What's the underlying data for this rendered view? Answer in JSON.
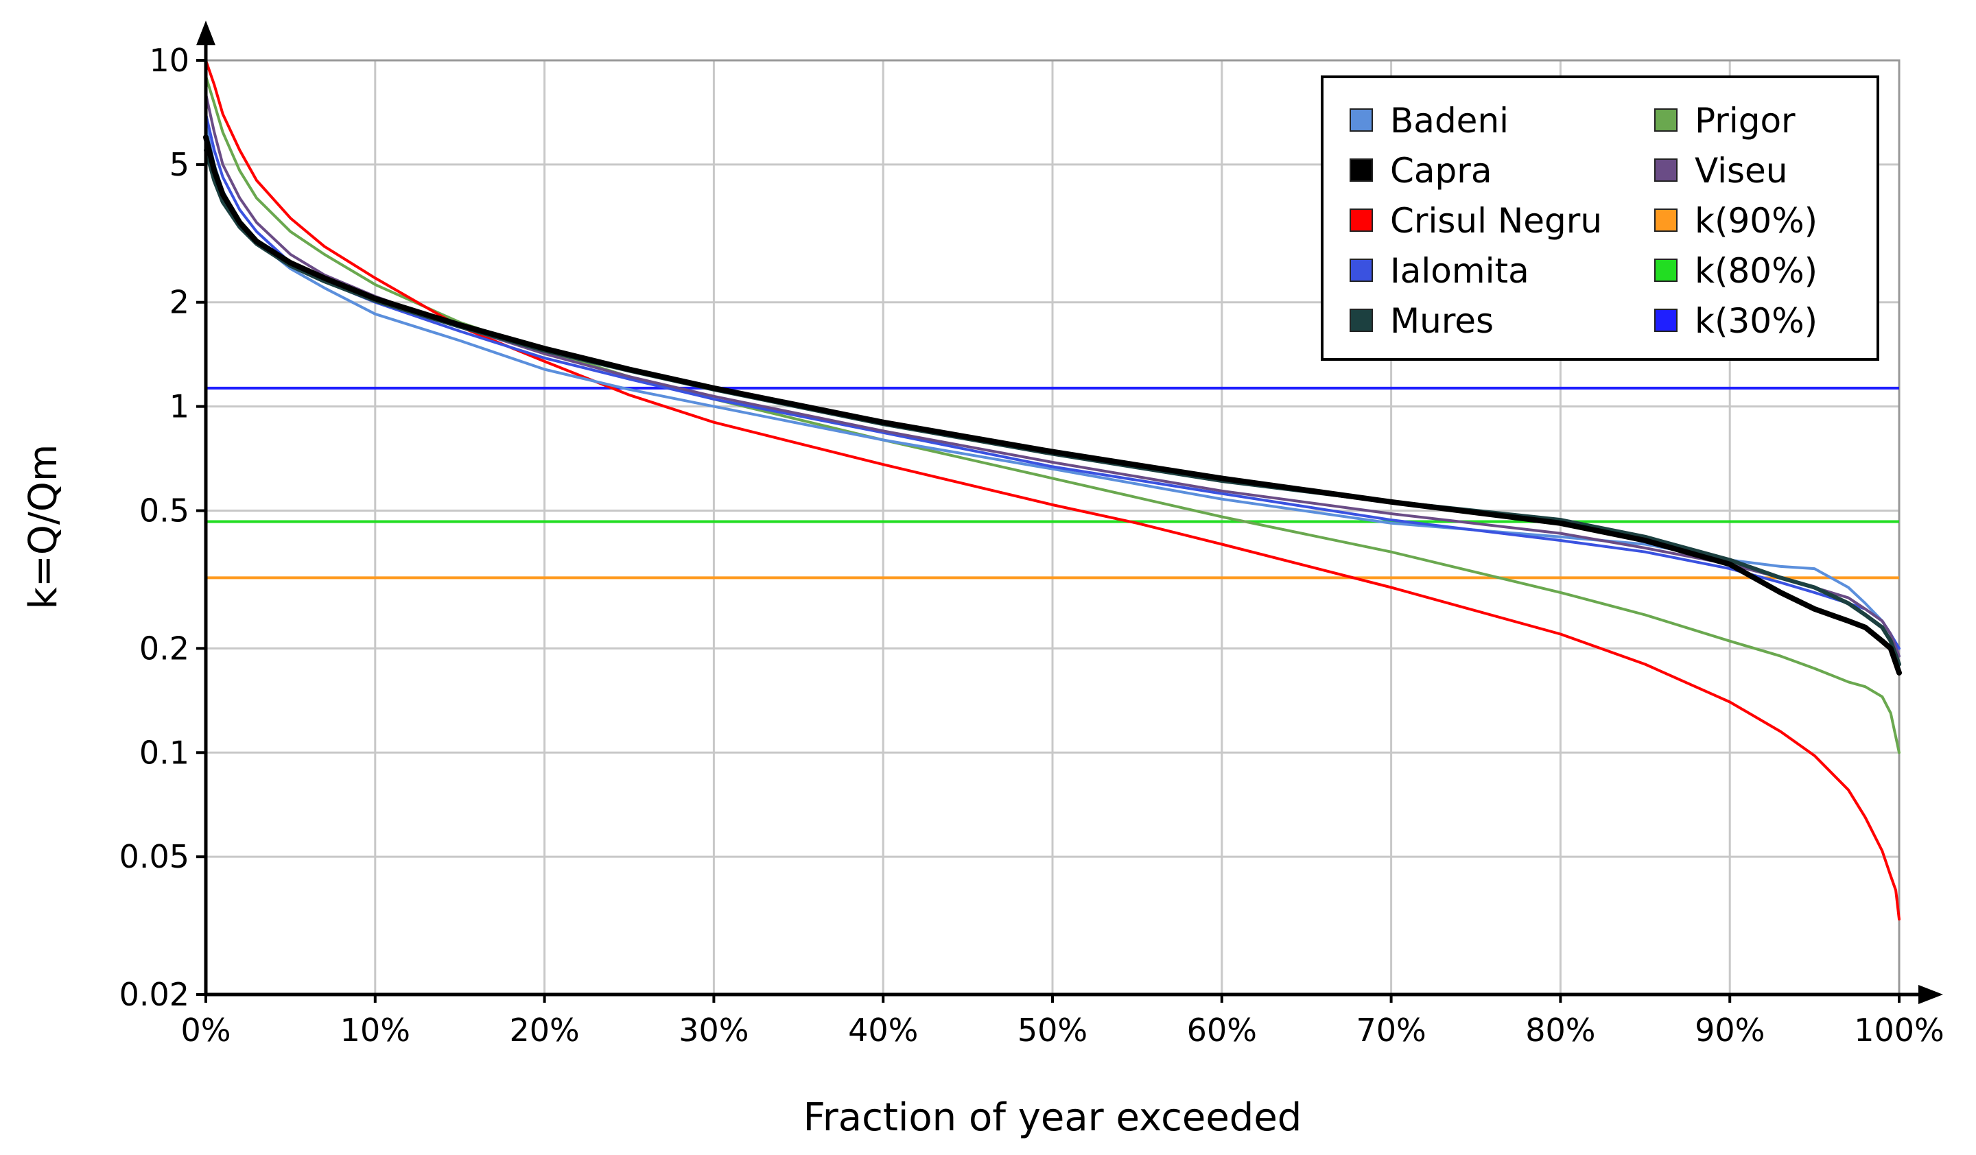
{
  "chart_data": {
    "type": "line",
    "title": "",
    "xlabel": "Fraction of year exceeded",
    "ylabel": "k=Q/Qm",
    "xlim": [
      0,
      100
    ],
    "ylim": [
      0.02,
      10
    ],
    "yscale": "log",
    "grid": true,
    "legend_position": "top-right",
    "x_ticks": [
      {
        "value": 0,
        "label": "0%"
      },
      {
        "value": 10,
        "label": "10%"
      },
      {
        "value": 20,
        "label": "20%"
      },
      {
        "value": 30,
        "label": "30%"
      },
      {
        "value": 40,
        "label": "40%"
      },
      {
        "value": 50,
        "label": "50%"
      },
      {
        "value": 60,
        "label": "60%"
      },
      {
        "value": 70,
        "label": "70%"
      },
      {
        "value": 80,
        "label": "80%"
      },
      {
        "value": 90,
        "label": "90%"
      },
      {
        "value": 100,
        "label": "100%"
      }
    ],
    "y_ticks": [
      {
        "value": 10,
        "label": "10"
      },
      {
        "value": 5,
        "label": "5"
      },
      {
        "value": 2,
        "label": "2"
      },
      {
        "value": 1,
        "label": "1"
      },
      {
        "value": 0.5,
        "label": "0.5"
      },
      {
        "value": 0.2,
        "label": "0.2"
      },
      {
        "value": 0.1,
        "label": "0.1"
      },
      {
        "value": 0.05,
        "label": "0.05"
      },
      {
        "value": 0.02,
        "label": "0.02"
      }
    ],
    "series": [
      {
        "name": "Badeni",
        "color": "#5b8fdc",
        "x": [
          0,
          0.5,
          1,
          2,
          3,
          5,
          7,
          10,
          15,
          20,
          25,
          30,
          40,
          50,
          60,
          70,
          80,
          85,
          90,
          93,
          95,
          97,
          98,
          99,
          99.5,
          100
        ],
        "y": [
          6.5,
          5.0,
          4.2,
          3.4,
          3.0,
          2.5,
          2.2,
          1.85,
          1.55,
          1.28,
          1.12,
          1.0,
          0.8,
          0.66,
          0.54,
          0.46,
          0.42,
          0.4,
          0.36,
          0.345,
          0.34,
          0.3,
          0.27,
          0.24,
          0.22,
          0.19
        ]
      },
      {
        "name": "Capra",
        "color": "#000000",
        "x": [
          0,
          0.5,
          1,
          2,
          3,
          5,
          7,
          10,
          15,
          20,
          25,
          30,
          40,
          50,
          60,
          70,
          80,
          85,
          90,
          93,
          95,
          97,
          98,
          99,
          99.5,
          100
        ],
        "y": [
          6.0,
          4.8,
          4.1,
          3.4,
          3.0,
          2.6,
          2.35,
          2.05,
          1.72,
          1.47,
          1.28,
          1.13,
          0.9,
          0.74,
          0.62,
          0.53,
          0.46,
          0.41,
          0.35,
          0.29,
          0.26,
          0.24,
          0.23,
          0.21,
          0.2,
          0.17
        ]
      },
      {
        "name": "Crisul Negru",
        "color": "#ff0000",
        "x": [
          0,
          0.5,
          1,
          2,
          3,
          5,
          7,
          10,
          15,
          20,
          25,
          30,
          40,
          50,
          55,
          60,
          70,
          80,
          85,
          90,
          93,
          95,
          97,
          98,
          99,
          99.5,
          99.8,
          100
        ],
        "y": [
          10.0,
          8.5,
          7.0,
          5.5,
          4.5,
          3.5,
          2.9,
          2.35,
          1.7,
          1.35,
          1.08,
          0.9,
          0.68,
          0.52,
          0.46,
          0.4,
          0.3,
          0.22,
          0.18,
          0.14,
          0.115,
          0.098,
          0.078,
          0.065,
          0.052,
          0.044,
          0.04,
          0.033
        ]
      },
      {
        "name": "Ialomita",
        "color": "#3a52e0",
        "x": [
          0,
          0.5,
          1,
          2,
          3,
          5,
          7,
          10,
          15,
          20,
          25,
          30,
          40,
          50,
          60,
          70,
          80,
          85,
          90,
          93,
          95,
          97,
          98,
          99,
          99.5,
          100
        ],
        "y": [
          7.0,
          5.5,
          4.6,
          3.7,
          3.2,
          2.6,
          2.3,
          2.0,
          1.65,
          1.38,
          1.2,
          1.05,
          0.84,
          0.67,
          0.56,
          0.47,
          0.41,
          0.38,
          0.34,
          0.31,
          0.29,
          0.27,
          0.26,
          0.24,
          0.22,
          0.2
        ]
      },
      {
        "name": "Mures",
        "color": "#1c4040",
        "x": [
          0,
          0.5,
          1,
          2,
          3,
          5,
          7,
          10,
          15,
          20,
          25,
          30,
          40,
          50,
          60,
          70,
          80,
          85,
          90,
          93,
          95,
          97,
          98,
          99,
          99.5,
          100
        ],
        "y": [
          5.5,
          4.5,
          3.9,
          3.3,
          2.95,
          2.55,
          2.3,
          2.02,
          1.7,
          1.45,
          1.27,
          1.12,
          0.89,
          0.73,
          0.61,
          0.53,
          0.47,
          0.42,
          0.36,
          0.32,
          0.3,
          0.27,
          0.25,
          0.23,
          0.21,
          0.18
        ]
      },
      {
        "name": "Prigor",
        "color": "#6aa84f",
        "x": [
          0,
          0.5,
          1,
          2,
          3,
          5,
          7,
          10,
          15,
          20,
          25,
          30,
          40,
          50,
          60,
          70,
          80,
          85,
          90,
          93,
          95,
          97,
          98,
          99,
          99.5,
          100
        ],
        "y": [
          9.0,
          7.5,
          6.2,
          4.8,
          4.0,
          3.2,
          2.75,
          2.25,
          1.75,
          1.45,
          1.22,
          1.05,
          0.8,
          0.62,
          0.48,
          0.38,
          0.29,
          0.25,
          0.21,
          0.19,
          0.175,
          0.16,
          0.155,
          0.145,
          0.13,
          0.1
        ]
      },
      {
        "name": "Viseu",
        "color": "#6a4c86",
        "x": [
          0,
          0.5,
          1,
          2,
          3,
          5,
          7,
          10,
          15,
          20,
          25,
          30,
          40,
          50,
          60,
          70,
          80,
          85,
          90,
          93,
          95,
          97,
          98,
          99,
          99.5,
          100
        ],
        "y": [
          8.0,
          6.2,
          5.0,
          4.0,
          3.4,
          2.75,
          2.4,
          2.08,
          1.7,
          1.42,
          1.22,
          1.07,
          0.85,
          0.69,
          0.57,
          0.49,
          0.43,
          0.39,
          0.35,
          0.32,
          0.3,
          0.28,
          0.26,
          0.24,
          0.22,
          0.19
        ]
      },
      {
        "name": "k(90%)",
        "color": "#ff9a1f",
        "type": "hline",
        "y": 0.32
      },
      {
        "name": "k(80%)",
        "color": "#22dd22",
        "type": "hline",
        "y": 0.465
      },
      {
        "name": "k(30%)",
        "color": "#1f1fff",
        "type": "hline",
        "y": 1.13
      }
    ]
  }
}
